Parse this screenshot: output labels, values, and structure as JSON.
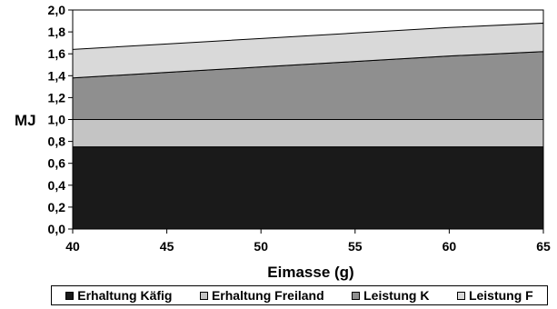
{
  "chart_data": {
    "type": "area",
    "stacked": true,
    "x": [
      40,
      45,
      50,
      55,
      60,
      65
    ],
    "xlabel": "Eimasse (g)",
    "ylabel": "MJ",
    "xlim": [
      40,
      65
    ],
    "ylim": [
      0,
      2.0
    ],
    "x_ticks": [
      "40",
      "45",
      "50",
      "55",
      "60",
      "65"
    ],
    "y_ticks": [
      "0,0",
      "0,2",
      "0,4",
      "0,6",
      "0,8",
      "1,0",
      "1,2",
      "1,4",
      "1,6",
      "1,8",
      "2,0"
    ],
    "y_tick_values": [
      0,
      0.2,
      0.4,
      0.6,
      0.8,
      1.0,
      1.2,
      1.4,
      1.6,
      1.8,
      2.0
    ],
    "grid": false,
    "legend_position": "bottom",
    "series": [
      {
        "name": "Erhaltung Käfig",
        "color": "#1a1a1a",
        "cumulative": [
          0.75,
          0.75,
          0.75,
          0.75,
          0.75,
          0.75
        ]
      },
      {
        "name": "Erhaltung Freiland",
        "color": "#c4c4c4",
        "cumulative": [
          1.0,
          1.0,
          1.0,
          1.0,
          1.0,
          1.0
        ]
      },
      {
        "name": "Leistung K",
        "color": "#8f8f8f",
        "cumulative": [
          1.38,
          1.43,
          1.48,
          1.53,
          1.58,
          1.62
        ]
      },
      {
        "name": "Leistung F",
        "color": "#d9d9d9",
        "cumulative": [
          1.64,
          1.69,
          1.74,
          1.79,
          1.84,
          1.88
        ]
      }
    ]
  }
}
